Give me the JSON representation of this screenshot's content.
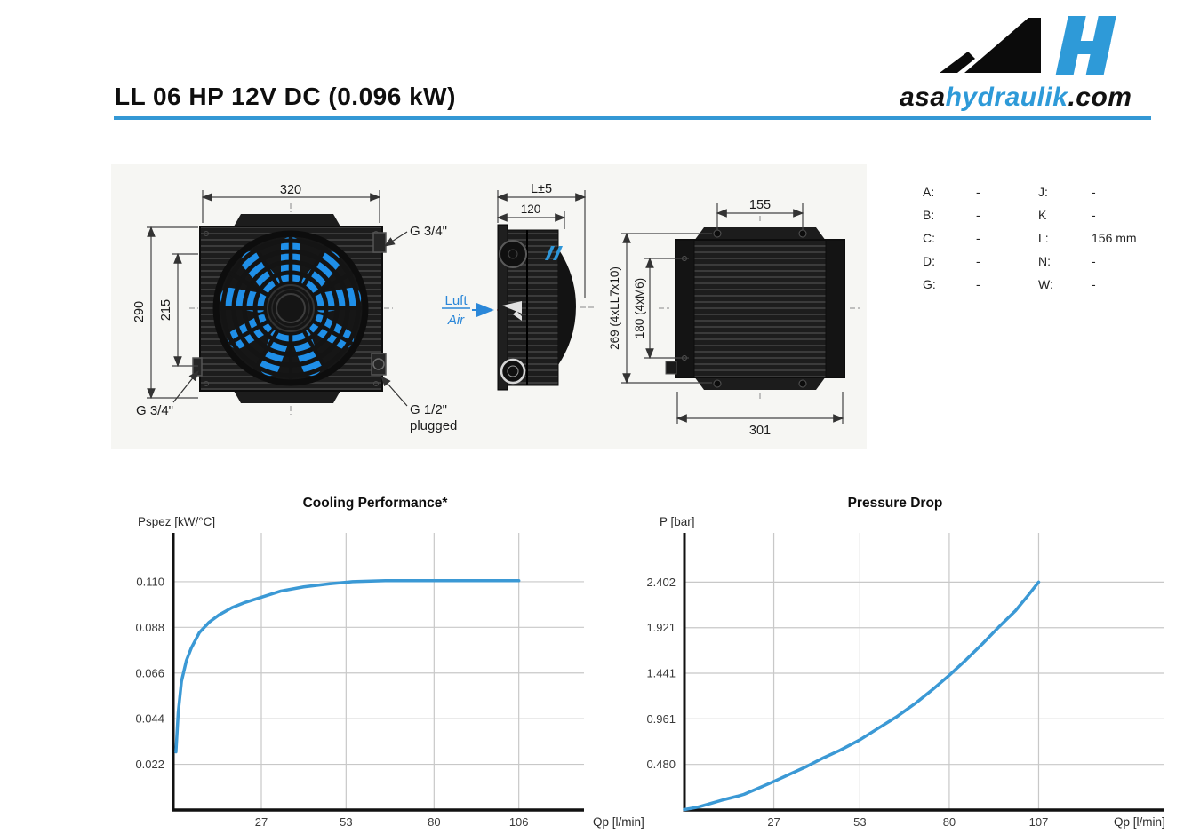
{
  "header": {
    "title": "LL 06 HP 12V DC (0.096 kW)",
    "accent_color": "#3498d5",
    "logo": {
      "asa": "asa",
      "hydraulik": "hydraulik",
      "com": ".com"
    }
  },
  "drawing": {
    "front": {
      "dim_width": "320",
      "dim_height_outer": "290",
      "dim_height_inner": "215",
      "port_top_right": "G 3/4\"",
      "port_bottom_left": "G 3/4\"",
      "port_bottom_right_line1": "G 1/2\"",
      "port_bottom_right_line2": "plugged",
      "air_label_de": "Luft",
      "air_label_en": "Air"
    },
    "side": {
      "dim_length": "L±5",
      "dim_core_depth": "120"
    },
    "back": {
      "dim_top": "155",
      "dim_bottom": "301",
      "dim_outer": "269  (4xLL7x10)",
      "dim_inner": "180  (4xM6)"
    }
  },
  "spec_table": {
    "rows": [
      {
        "k1": "A:",
        "v1": "-",
        "k2": "J:",
        "v2": "-"
      },
      {
        "k1": "B:",
        "v1": "-",
        "k2": "K",
        "v2": "-"
      },
      {
        "k1": "C:",
        "v1": "-",
        "k2": "L:",
        "v2": "156 mm"
      },
      {
        "k1": "D:",
        "v1": "-",
        "k2": "N:",
        "v2": "-"
      },
      {
        "k1": "G:",
        "v1": "-",
        "k2": "W:",
        "v2": "-"
      }
    ]
  },
  "chart_data": [
    {
      "type": "line",
      "title": "Cooling Performance*",
      "ylabel": "Pspez [kW/°C]",
      "xlabel": "Qp [l/min]",
      "x_ticks": [
        27,
        53,
        80,
        106
      ],
      "y_ticks": [
        "0.022",
        "0.044",
        "0.066",
        "0.088",
        "0.110"
      ],
      "xlim": [
        0,
        126
      ],
      "ylim": [
        0,
        0.1335
      ],
      "grid": true,
      "legend": "none",
      "line_color": "#3b99d5",
      "series": [
        {
          "name": "Pspez",
          "x": [
            0.8,
            1.5,
            2.5,
            4,
            5.5,
            8,
            11,
            14,
            18,
            22,
            27,
            33,
            40,
            48,
            55,
            65,
            80,
            106
          ],
          "y": [
            0.028,
            0.047,
            0.062,
            0.072,
            0.078,
            0.0855,
            0.0905,
            0.094,
            0.0975,
            0.1,
            0.1025,
            0.1055,
            0.1075,
            0.109,
            0.11,
            0.1105,
            0.1105,
            0.1105
          ]
        }
      ]
    },
    {
      "type": "line",
      "title": "Pressure Drop",
      "ylabel": "P [bar]",
      "xlabel": "Qp [l/min]",
      "x_ticks": [
        27,
        53,
        80,
        107
      ],
      "y_ticks": [
        "0.480",
        "0.961",
        "1.441",
        "1.921",
        "2.402"
      ],
      "xlim": [
        0,
        145
      ],
      "ylim": [
        0,
        2.92
      ],
      "grid": true,
      "legend": "none",
      "line_color": "#3b99d5",
      "series": [
        {
          "name": "P",
          "x": [
            0,
            4,
            8,
            12,
            16,
            18,
            22,
            27,
            32,
            37,
            42,
            47,
            53,
            58,
            64,
            70,
            75,
            80,
            85,
            90,
            95,
            100,
            104,
            107
          ],
          "y": [
            0.005,
            0.03,
            0.07,
            0.11,
            0.145,
            0.165,
            0.225,
            0.3,
            0.38,
            0.46,
            0.55,
            0.63,
            0.74,
            0.85,
            0.98,
            1.13,
            1.27,
            1.42,
            1.58,
            1.75,
            1.93,
            2.1,
            2.27,
            2.402
          ]
        }
      ]
    }
  ]
}
